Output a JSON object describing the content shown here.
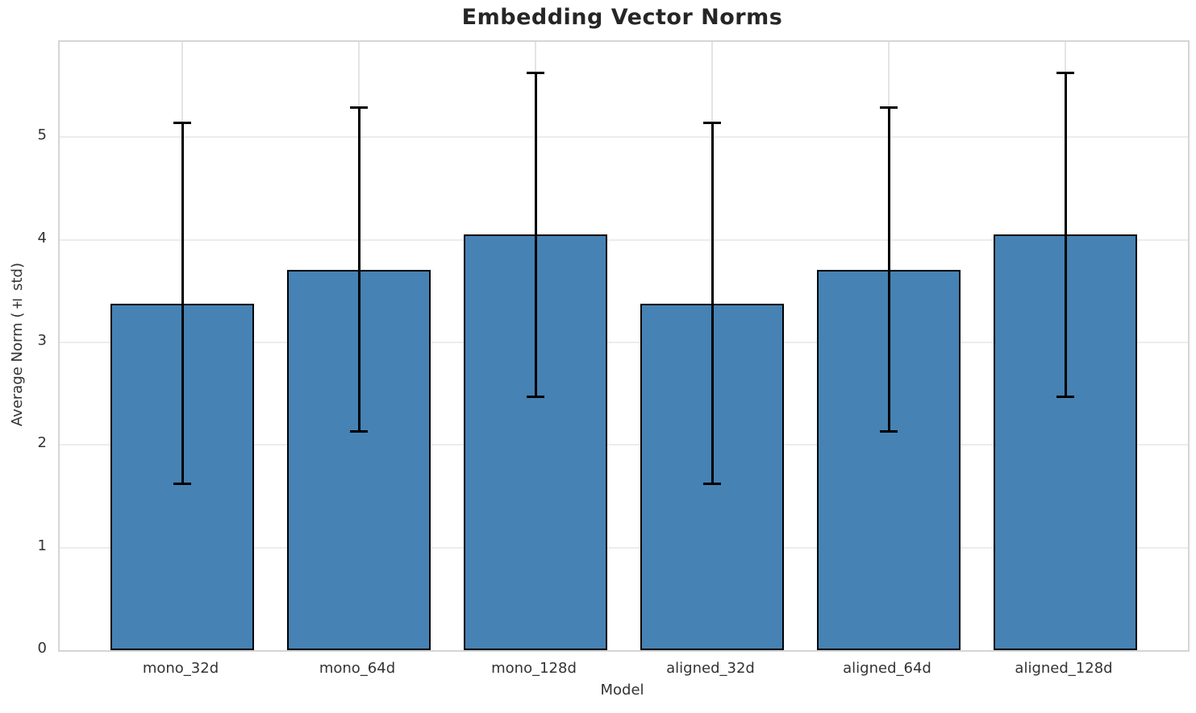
{
  "chart_data": {
    "type": "bar",
    "title": "Embedding Vector Norms",
    "xlabel": "Model",
    "ylabel": "Average Norm (± std)",
    "categories": [
      "mono_32d",
      "mono_64d",
      "mono_128d",
      "aligned_32d",
      "aligned_64d",
      "aligned_128d"
    ],
    "values": [
      3.38,
      3.71,
      4.05,
      3.38,
      3.71,
      4.05
    ],
    "errors": [
      1.76,
      1.58,
      1.58,
      1.76,
      1.58,
      1.58
    ],
    "yticks": [
      0,
      1,
      2,
      3,
      4,
      5
    ],
    "ylim": [
      0,
      5.93
    ],
    "grid": true,
    "legend": "none",
    "bar_color": "#4682B4",
    "bar_edge_color": "#000000",
    "error_color": "#000000",
    "background_color": "#ffffff",
    "spine_color": "#d5d5d5",
    "gridline_color": "#ececec",
    "tick_label_color": "#333333",
    "title_color": "#262626"
  }
}
